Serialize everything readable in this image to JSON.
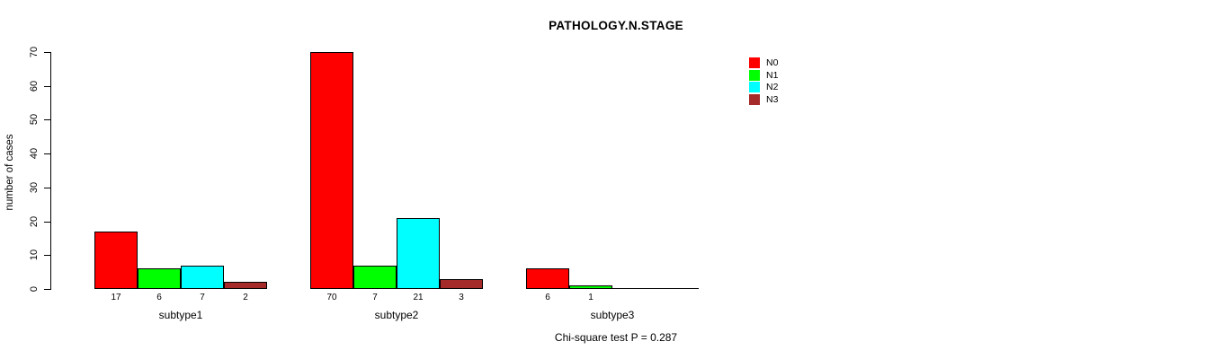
{
  "chart_data": {
    "type": "bar",
    "title": "PATHOLOGY.N.STAGE",
    "ylabel": "number of cases",
    "xlabel": "",
    "categories": [
      "subtype1",
      "subtype2",
      "subtype3"
    ],
    "series": [
      {
        "name": "N0",
        "color": "#FF0000",
        "values": [
          17,
          70,
          6
        ]
      },
      {
        "name": "N1",
        "color": "#00FF00",
        "values": [
          6,
          7,
          1
        ]
      },
      {
        "name": "N2",
        "color": "#00FFFF",
        "values": [
          7,
          21,
          0
        ]
      },
      {
        "name": "N3",
        "color": "#A52A2A",
        "values": [
          2,
          3,
          0
        ]
      }
    ],
    "ylim": [
      0,
      70
    ],
    "yticks": [
      0,
      10,
      20,
      30,
      40,
      50,
      60,
      70
    ],
    "grid": false,
    "legend": {
      "position": "top-right-outside",
      "entries": [
        "N0",
        "N1",
        "N2",
        "N3"
      ]
    },
    "bar_value_labels_shown_for_nonzero": true,
    "annotation": "Chi-square test P = 0.287",
    "colors": {
      "axis": "#000000",
      "background": "#FFFFFF"
    }
  }
}
